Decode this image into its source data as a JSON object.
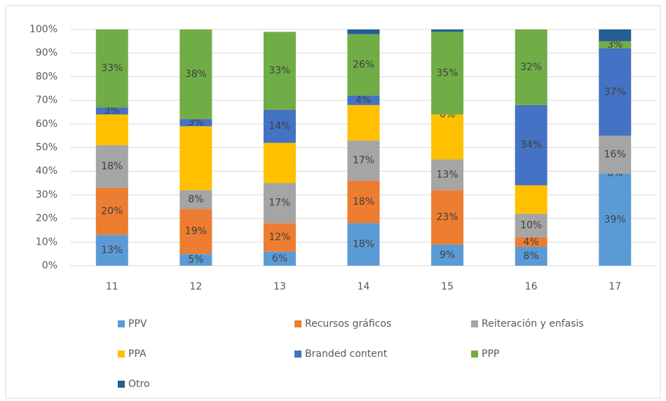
{
  "chart_data": {
    "type": "stacked_bar",
    "categories": [
      "11",
      "12",
      "13",
      "14",
      "15",
      "16",
      "17"
    ],
    "ylim": [
      0,
      100
    ],
    "yticks": [
      {
        "value": 0,
        "label": "0%"
      },
      {
        "value": 10,
        "label": "10%"
      },
      {
        "value": 20,
        "label": "20%"
      },
      {
        "value": 30,
        "label": "30%"
      },
      {
        "value": 40,
        "label": "40%"
      },
      {
        "value": 50,
        "label": "50%"
      },
      {
        "value": 60,
        "label": "60%"
      },
      {
        "value": 70,
        "label": "70%"
      },
      {
        "value": 80,
        "label": "80%"
      },
      {
        "value": 90,
        "label": "90%"
      },
      {
        "value": 100,
        "label": "100%"
      }
    ],
    "grid": true,
    "legend": "bottom",
    "series": [
      {
        "name": "PPV",
        "color": "#5b9bd5",
        "values": [
          13,
          5,
          6,
          18,
          9,
          8,
          39
        ],
        "value_labels": [
          "13%",
          "5%",
          "6%",
          "18%",
          "9%",
          "8%",
          "39%"
        ]
      },
      {
        "name": "Recursos gráficos",
        "color": "#ed7d31",
        "values": [
          20,
          19,
          12,
          18,
          23,
          4,
          0
        ],
        "value_labels": [
          "20%",
          "19%",
          "12%",
          "18%",
          "23%",
          "4%",
          "0%"
        ]
      },
      {
        "name": "Reiteración y enfasis",
        "color": "#a5a5a5",
        "values": [
          18,
          8,
          17,
          17,
          13,
          10,
          16
        ],
        "value_labels": [
          "18%",
          "8%",
          "17%",
          "17%",
          "13%",
          "10%",
          "16%"
        ]
      },
      {
        "name": "PPA",
        "color": "#ffc000",
        "values": [
          13,
          27,
          17,
          15,
          19,
          12,
          0
        ],
        "value_labels": [
          null,
          null,
          null,
          null,
          null,
          null,
          null
        ]
      },
      {
        "name": "Branded content",
        "color": "#4472c4",
        "values": [
          3,
          3,
          14,
          4,
          0,
          34,
          37
        ],
        "value_labels": [
          "3%",
          "3%",
          "14%",
          "4%",
          "0%",
          "34%",
          "37%"
        ]
      },
      {
        "name": "PPP",
        "color": "#70ad47",
        "values": [
          33,
          38,
          33,
          26,
          35,
          32,
          3
        ],
        "value_labels": [
          "33%",
          "38%",
          "33%",
          "26%",
          "35%",
          "32%",
          "3%"
        ]
      },
      {
        "name": "Otro",
        "color": "#255e91",
        "values": [
          0,
          0,
          0,
          2,
          1,
          0,
          5
        ],
        "value_labels": [
          null,
          null,
          null,
          null,
          null,
          null,
          null
        ]
      }
    ]
  }
}
